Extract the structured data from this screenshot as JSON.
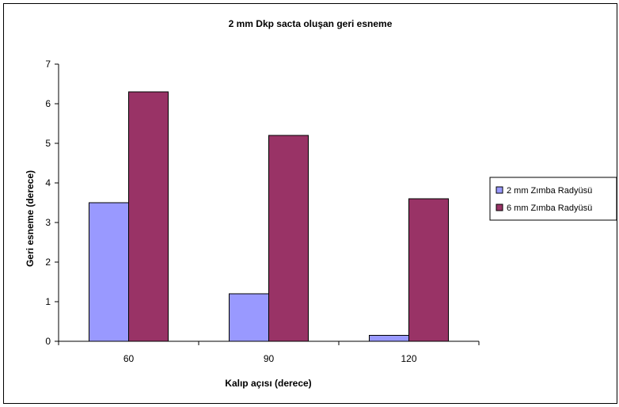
{
  "chart_data": {
    "type": "bar",
    "title": "2 mm Dkp sacta oluşan geri esneme",
    "xlabel": "Kalıp açısı (derece)",
    "ylabel": "Geri esneme (derece)",
    "categories": [
      "60",
      "90",
      "120"
    ],
    "ylim": [
      0,
      7
    ],
    "yticks": [
      0,
      1,
      2,
      3,
      4,
      5,
      6,
      7
    ],
    "grid": false,
    "legend_position": "right",
    "series": [
      {
        "name": "2 mm Zımba Radyüsü",
        "values": [
          3.5,
          1.2,
          0.15
        ],
        "color": "#9999ff"
      },
      {
        "name": "6 mm Zımba Radyüsü",
        "values": [
          6.3,
          5.2,
          3.6
        ],
        "color": "#993366"
      }
    ]
  }
}
